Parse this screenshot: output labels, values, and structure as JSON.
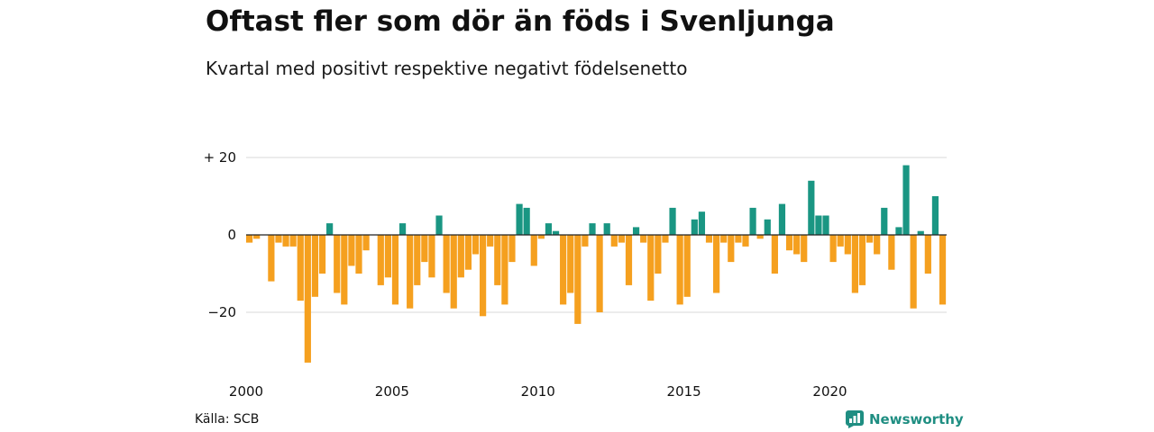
{
  "header": {
    "title": "Oftast fler som dör än föds i Svenljunga",
    "subtitle": "Kvartal med positivt respektive negativt födelsenetto"
  },
  "footer": {
    "source": "Källa: SCB",
    "brand": "Newsworthy",
    "brand_icon": "newsworthy-logo-icon"
  },
  "chart_data": {
    "type": "bar",
    "x_start_year": 2000,
    "values": [
      -2,
      -1,
      0,
      -12,
      -2,
      -3,
      -3,
      -17,
      -33,
      -16,
      -10,
      3,
      -15,
      -18,
      -8,
      -10,
      -4,
      0,
      -13,
      -11,
      -18,
      3,
      -19,
      -13,
      -7,
      -11,
      5,
      -15,
      -19,
      -11,
      -9,
      -5,
      -21,
      -3,
      -13,
      -18,
      -7,
      8,
      7,
      -8,
      -1,
      3,
      1,
      -18,
      -15,
      -23,
      -3,
      3,
      -20,
      3,
      -3,
      -2,
      -13,
      2,
      -2,
      -17,
      -10,
      -2,
      7,
      -18,
      -16,
      4,
      6,
      -2,
      -15,
      -2,
      -7,
      -2,
      -3,
      7,
      -1,
      4,
      -10,
      8,
      -4,
      -5,
      -7,
      14,
      5,
      5,
      -7,
      -3,
      -5,
      -15,
      -13,
      -2,
      -5,
      7,
      -9,
      2,
      18,
      -19,
      1,
      -10,
      10,
      -18
    ],
    "positive_color": "#1a9683",
    "negative_color": "#f5a01f",
    "yticks": [
      20,
      0,
      -20
    ],
    "ytick_labels": [
      "+ 20",
      "0",
      "−20"
    ],
    "xticks": [
      2000,
      2005,
      2010,
      2015,
      2020
    ],
    "xtick_labels": [
      "2000",
      "2005",
      "2010",
      "2015",
      "2020"
    ],
    "ylim": [
      -35,
      20
    ],
    "grid": true
  }
}
